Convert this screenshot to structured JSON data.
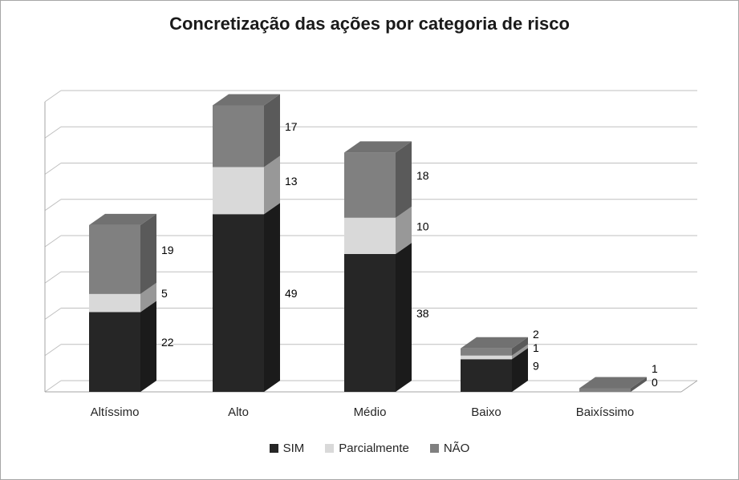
{
  "chart_data": {
    "type": "bar",
    "subtype": "stacked-column-3d",
    "title": "Concretização das ações por categoria de risco",
    "categories": [
      "Altíssimo",
      "Alto",
      "Médio",
      "Baixo",
      "Baixíssimo"
    ],
    "series": [
      {
        "name": "SIM",
        "color": "#262626",
        "values": [
          22,
          49,
          38,
          9,
          0
        ],
        "labels": [
          "22",
          "49",
          "38",
          "9",
          "0"
        ]
      },
      {
        "name": "Parcialmente",
        "color": "#d9d9d9",
        "values": [
          5,
          13,
          10,
          1,
          0
        ],
        "labels": [
          "5",
          "13",
          "10",
          "1",
          ""
        ]
      },
      {
        "name": "NÃO",
        "color": "#808080",
        "values": [
          19,
          17,
          18,
          2,
          1
        ],
        "labels": [
          "19",
          "17",
          "18",
          "2",
          "1"
        ]
      }
    ],
    "xlabel": "",
    "ylabel": "",
    "ylim": [
      0,
      80
    ],
    "grid_step": 10,
    "grid": true,
    "legend_position": "bottom",
    "grid_color": "#bfbfbf",
    "axis_color": "#a6a6a6",
    "label_color": "#000000"
  }
}
